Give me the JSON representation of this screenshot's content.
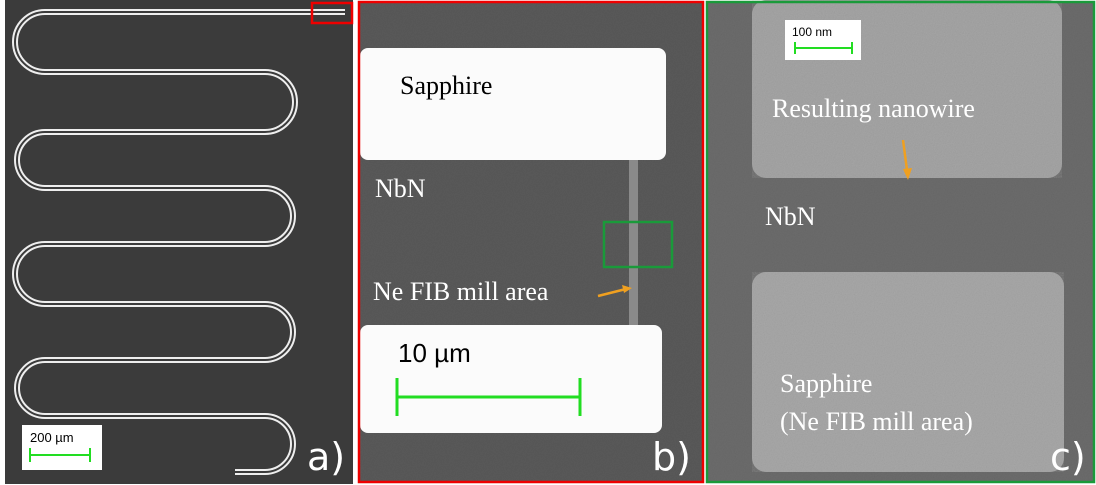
{
  "panels": [
    {
      "label": "a)",
      "scale_bar": "200 µm"
    },
    {
      "label": "b)",
      "scale_bar": "10 µm",
      "texts": [
        "Sapphire",
        "NbN",
        "Ne FIB mill area"
      ]
    },
    {
      "label": "c)",
      "scale_bar": "100 nm",
      "texts": [
        "Resulting nanowire",
        "NbN",
        "Sapphire",
        "(Ne FIB mill area)"
      ]
    }
  ]
}
